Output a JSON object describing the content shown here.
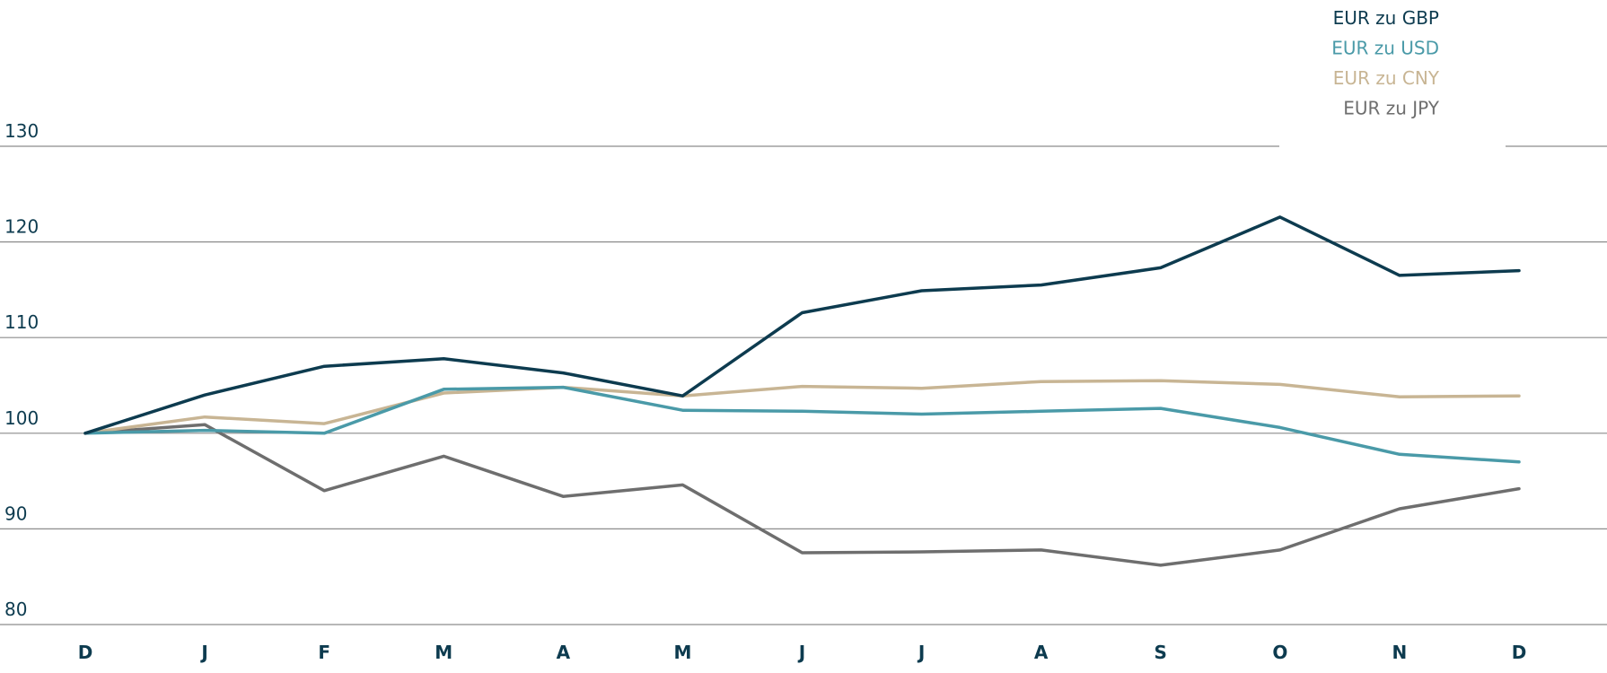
{
  "chart_data": {
    "type": "line",
    "title": "",
    "xlabel": "",
    "ylabel": "",
    "categories": [
      "D",
      "J",
      "F",
      "M",
      "A",
      "M",
      "J",
      "J",
      "A",
      "S",
      "O",
      "N",
      "D"
    ],
    "yticks": [
      "80",
      "90",
      "100",
      "110",
      "120",
      "130"
    ],
    "ylim": [
      80,
      130
    ],
    "grid": true,
    "legend_position": "top-right",
    "series": [
      {
        "name": "EUR zu GBP",
        "color": "#0d3b4f",
        "values": [
          100.0,
          104.0,
          107.0,
          107.8,
          106.3,
          103.9,
          112.6,
          114.9,
          115.5,
          117.3,
          122.6,
          116.5,
          117.0
        ]
      },
      {
        "name": "EUR zu USD",
        "color": "#4a9aa8",
        "values": [
          100.0,
          100.3,
          100.0,
          104.6,
          104.8,
          102.4,
          102.3,
          102.0,
          102.3,
          102.6,
          100.6,
          97.8,
          97.0
        ]
      },
      {
        "name": "EUR zu CNY",
        "color": "#c8b594",
        "values": [
          100.0,
          101.7,
          101.0,
          104.2,
          104.8,
          103.9,
          104.9,
          104.7,
          105.4,
          105.5,
          105.1,
          103.8,
          103.9
        ]
      },
      {
        "name": "EUR zu JPY",
        "color": "#6e6e6e",
        "values": [
          100.0,
          100.9,
          94.0,
          97.6,
          93.4,
          94.6,
          87.5,
          87.6,
          87.8,
          86.2,
          87.8,
          92.1,
          94.2
        ]
      }
    ]
  }
}
